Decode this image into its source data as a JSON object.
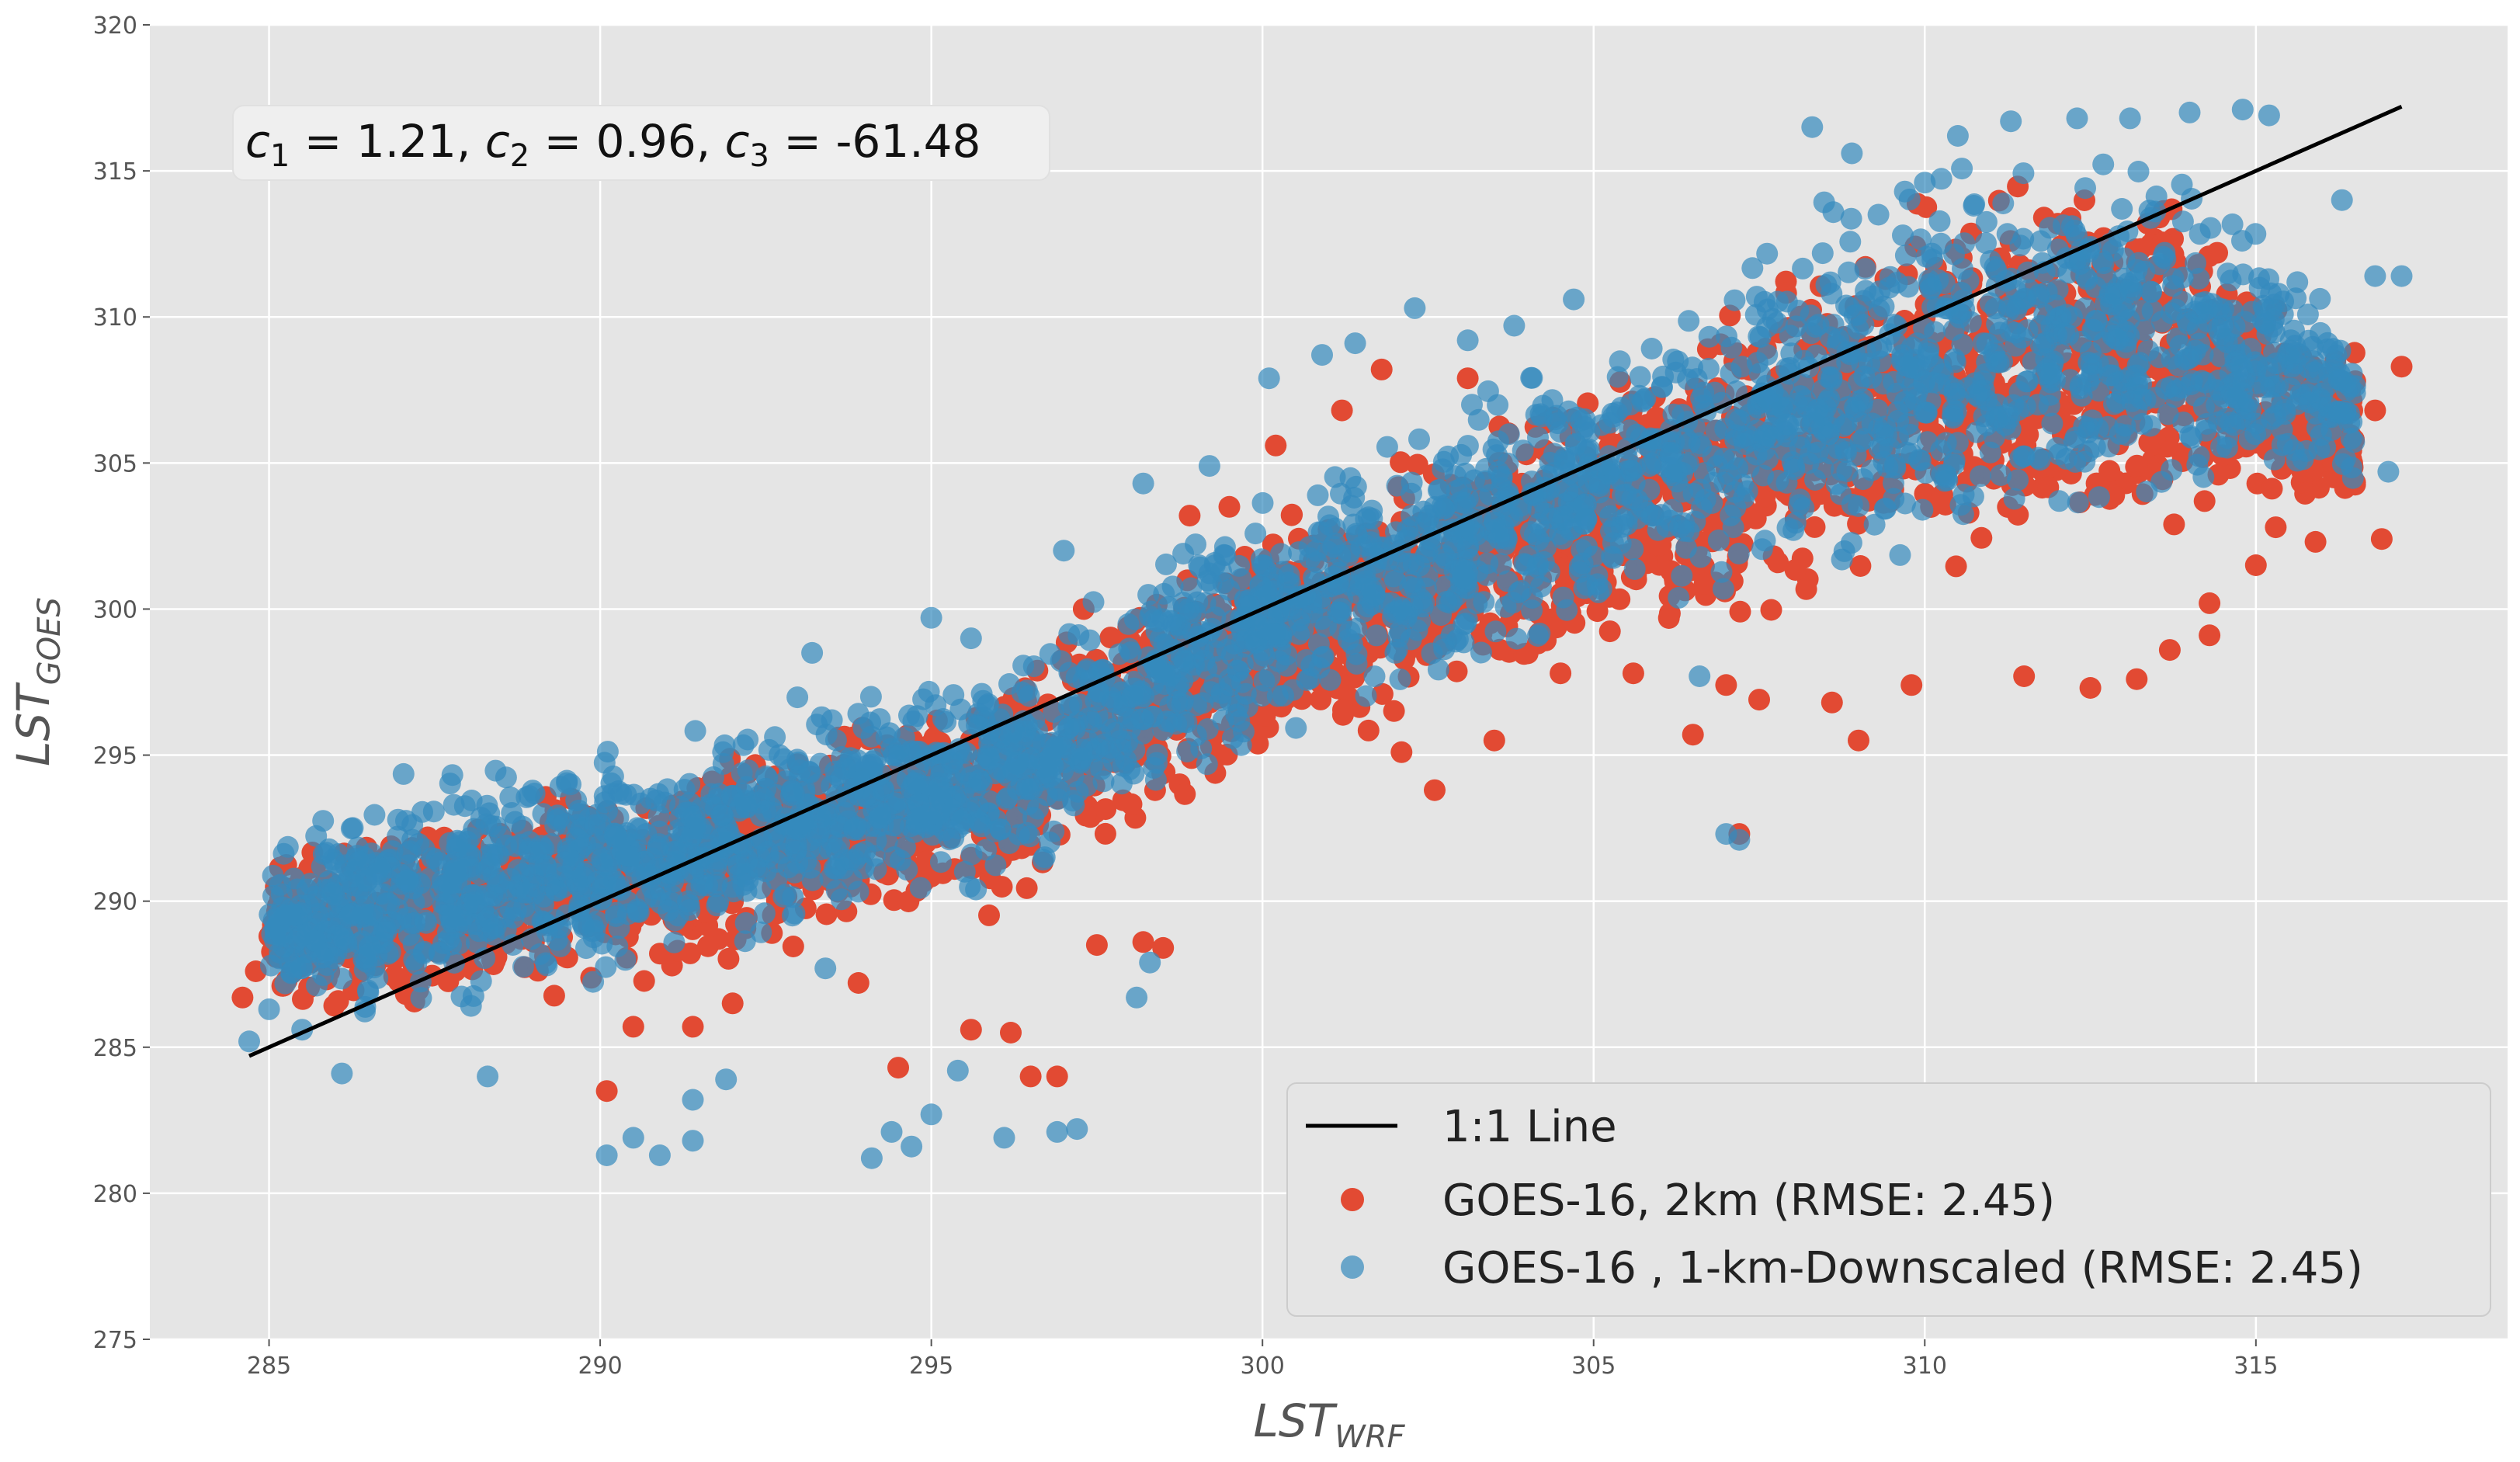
{
  "chart_data": {
    "type": "scatter",
    "title": "",
    "xlabel": "LST",
    "xlabel_sub": "WRF",
    "ylabel": "LST",
    "ylabel_sub": "GOES",
    "xlim": [
      283.2,
      318.8
    ],
    "ylim": [
      275,
      320
    ],
    "xticks": [
      285,
      290,
      295,
      300,
      305,
      310,
      315
    ],
    "yticks": [
      275,
      280,
      285,
      290,
      295,
      300,
      305,
      310,
      315,
      320
    ],
    "grid": true,
    "legend_position": "bottom-right",
    "annotation": {
      "c1_label": "c",
      "c1_sub": "1",
      "c1_value": " = 1.21, ",
      "c2_label": "c",
      "c2_sub": "2",
      "c2_value": " = 0.96, ",
      "c3_label": "c",
      "c3_sub": "3",
      "c3_value": " = -61.48"
    },
    "reference_line": {
      "name": "1:1 Line",
      "x": [
        284.7,
        317.2
      ],
      "y": [
        284.7,
        317.2
      ],
      "color": "#000000"
    },
    "series": [
      {
        "name": "GOES-16, 2km (RMSE: 2.45)",
        "color": "#E24A33",
        "cloud_envelope_x": [
          285,
          287,
          290,
          293,
          296,
          298,
          300,
          303,
          306,
          308,
          310,
          312,
          314,
          316.5
        ],
        "cloud_lower_y": [
          286.3,
          285.3,
          286.5,
          287.8,
          289.2,
          291.8,
          294.2,
          296.3,
          298.2,
          299.1,
          300.0,
          301.0,
          302.0,
          302.8
        ],
        "cloud_upper_y": [
          291.8,
          293.6,
          294.5,
          296.5,
          298.5,
          301.0,
          303.5,
          306.5,
          309.8,
          312.5,
          314.8,
          315.5,
          315.0,
          309.2
        ],
        "outliers": [
          {
            "x": 284.6,
            "y": 286.7
          },
          {
            "x": 284.8,
            "y": 287.6
          },
          {
            "x": 285.2,
            "y": 287.1
          },
          {
            "x": 290.5,
            "y": 285.7
          },
          {
            "x": 291.4,
            "y": 285.7
          },
          {
            "x": 290.1,
            "y": 283.5
          },
          {
            "x": 292.0,
            "y": 286.5
          },
          {
            "x": 293.9,
            "y": 287.2
          },
          {
            "x": 294.5,
            "y": 284.3
          },
          {
            "x": 295.6,
            "y": 285.6
          },
          {
            "x": 296.2,
            "y": 285.5
          },
          {
            "x": 296.5,
            "y": 284.0
          },
          {
            "x": 296.9,
            "y": 284.0
          },
          {
            "x": 297.5,
            "y": 288.5
          },
          {
            "x": 298.2,
            "y": 288.6
          },
          {
            "x": 298.5,
            "y": 288.4
          },
          {
            "x": 297.3,
            "y": 300.0
          },
          {
            "x": 298.9,
            "y": 303.2
          },
          {
            "x": 299.5,
            "y": 303.5
          },
          {
            "x": 300.2,
            "y": 305.6
          },
          {
            "x": 301.2,
            "y": 306.8
          },
          {
            "x": 301.8,
            "y": 308.2
          },
          {
            "x": 303.1,
            "y": 307.9
          },
          {
            "x": 302.1,
            "y": 295.1
          },
          {
            "x": 302.6,
            "y": 293.8
          },
          {
            "x": 303.5,
            "y": 295.5
          },
          {
            "x": 304.5,
            "y": 297.8
          },
          {
            "x": 305.6,
            "y": 297.8
          },
          {
            "x": 306.5,
            "y": 295.7
          },
          {
            "x": 307.0,
            "y": 297.4
          },
          {
            "x": 307.5,
            "y": 296.9
          },
          {
            "x": 308.6,
            "y": 296.8
          },
          {
            "x": 309.0,
            "y": 295.5
          },
          {
            "x": 309.8,
            "y": 297.4
          },
          {
            "x": 311.5,
            "y": 297.7
          },
          {
            "x": 312.5,
            "y": 297.3
          },
          {
            "x": 313.2,
            "y": 297.6
          },
          {
            "x": 313.7,
            "y": 298.6
          },
          {
            "x": 314.3,
            "y": 300.2
          },
          {
            "x": 314.3,
            "y": 299.1
          },
          {
            "x": 315.0,
            "y": 301.5
          },
          {
            "x": 315.3,
            "y": 302.8
          },
          {
            "x": 315.9,
            "y": 302.3
          },
          {
            "x": 316.9,
            "y": 302.4
          },
          {
            "x": 317.2,
            "y": 308.3
          },
          {
            "x": 316.8,
            "y": 306.8
          },
          {
            "x": 316.1,
            "y": 306.9
          },
          {
            "x": 315.7,
            "y": 304.7
          },
          {
            "x": 316.2,
            "y": 308.5
          },
          {
            "x": 316.5,
            "y": 307.8
          },
          {
            "x": 312.7,
            "y": 312.7
          },
          {
            "x": 311.8,
            "y": 313.4
          },
          {
            "x": 307.2,
            "y": 292.3
          }
        ]
      },
      {
        "name": "GOES-16 , 1-km-Downscaled (RMSE: 2.45)",
        "color": "#348ABD",
        "cloud_envelope_x": [
          285,
          287,
          290,
          293,
          296,
          298,
          300,
          303,
          306,
          308,
          310,
          312,
          314,
          316.5
        ],
        "cloud_lower_y": [
          286.0,
          284.9,
          286.8,
          288.2,
          289.8,
          292.5,
          295.0,
          297.0,
          298.8,
          299.6,
          300.5,
          301.6,
          302.6,
          303.5
        ],
        "cloud_upper_y": [
          292.3,
          295.0,
          296.0,
          297.5,
          298.8,
          301.5,
          304.5,
          308.0,
          311.3,
          314.5,
          316.3,
          316.6,
          316.2,
          310.2
        ],
        "outliers": [
          {
            "x": 284.7,
            "y": 285.2
          },
          {
            "x": 285.0,
            "y": 286.3
          },
          {
            "x": 285.5,
            "y": 285.6
          },
          {
            "x": 286.1,
            "y": 284.1
          },
          {
            "x": 288.3,
            "y": 284.0
          },
          {
            "x": 290.1,
            "y": 281.3
          },
          {
            "x": 290.5,
            "y": 281.9
          },
          {
            "x": 290.9,
            "y": 281.3
          },
          {
            "x": 291.4,
            "y": 283.2
          },
          {
            "x": 291.4,
            "y": 281.8
          },
          {
            "x": 291.9,
            "y": 283.9
          },
          {
            "x": 293.4,
            "y": 287.7
          },
          {
            "x": 294.1,
            "y": 281.2
          },
          {
            "x": 294.4,
            "y": 282.1
          },
          {
            "x": 294.7,
            "y": 281.6
          },
          {
            "x": 295.0,
            "y": 282.7
          },
          {
            "x": 295.4,
            "y": 284.2
          },
          {
            "x": 296.1,
            "y": 281.9
          },
          {
            "x": 297.2,
            "y": 282.2
          },
          {
            "x": 296.9,
            "y": 282.1
          },
          {
            "x": 298.1,
            "y": 286.7
          },
          {
            "x": 298.3,
            "y": 287.9
          },
          {
            "x": 297.0,
            "y": 302.0
          },
          {
            "x": 298.2,
            "y": 304.3
          },
          {
            "x": 299.2,
            "y": 304.9
          },
          {
            "x": 300.1,
            "y": 307.9
          },
          {
            "x": 300.9,
            "y": 308.7
          },
          {
            "x": 301.4,
            "y": 309.1
          },
          {
            "x": 302.3,
            "y": 310.3
          },
          {
            "x": 303.1,
            "y": 309.2
          },
          {
            "x": 303.8,
            "y": 309.7
          },
          {
            "x": 304.7,
            "y": 310.6
          },
          {
            "x": 295.6,
            "y": 299.0
          },
          {
            "x": 295.0,
            "y": 299.7
          },
          {
            "x": 293.2,
            "y": 298.5
          },
          {
            "x": 307.0,
            "y": 292.3
          },
          {
            "x": 307.2,
            "y": 292.1
          },
          {
            "x": 306.6,
            "y": 297.7
          },
          {
            "x": 305.0,
            "y": 301.8
          },
          {
            "x": 309.3,
            "y": 313.5
          },
          {
            "x": 310.0,
            "y": 314.6
          },
          {
            "x": 310.5,
            "y": 316.2
          },
          {
            "x": 311.3,
            "y": 316.7
          },
          {
            "x": 312.3,
            "y": 316.8
          },
          {
            "x": 313.1,
            "y": 316.8
          },
          {
            "x": 314.0,
            "y": 317.0
          },
          {
            "x": 314.8,
            "y": 317.1
          },
          {
            "x": 315.2,
            "y": 316.9
          },
          {
            "x": 316.3,
            "y": 314.0
          },
          {
            "x": 316.8,
            "y": 311.4
          },
          {
            "x": 317.2,
            "y": 311.4
          },
          {
            "x": 317.0,
            "y": 304.7
          },
          {
            "x": 308.9,
            "y": 315.6
          },
          {
            "x": 308.3,
            "y": 316.5
          }
        ]
      }
    ]
  }
}
